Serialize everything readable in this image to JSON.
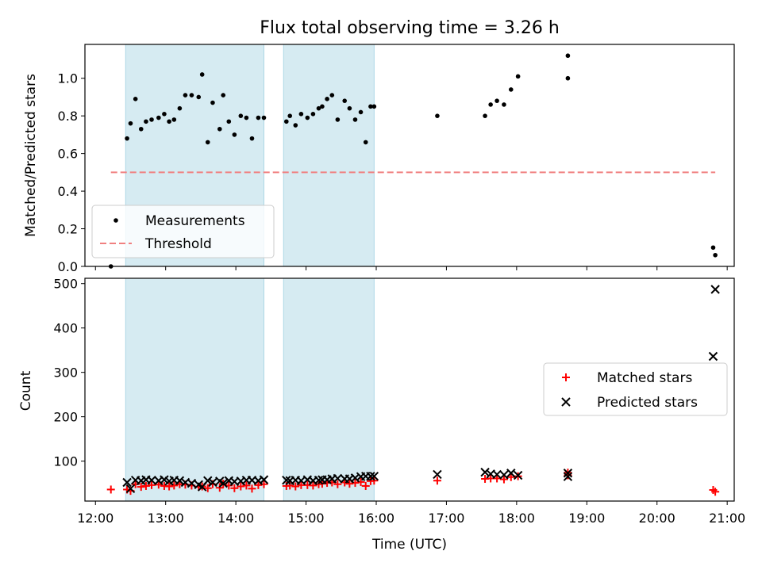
{
  "chart_data": [
    {
      "type": "scatter",
      "title": "Flux total observing time = 3.26 h",
      "xlabel": "",
      "ylabel": "Matched/Predicted stars",
      "xlim": [
        11.85,
        21.1
      ],
      "ylim": [
        0,
        1.18
      ],
      "yticks": [
        0.0,
        0.2,
        0.4,
        0.6,
        0.8,
        1.0
      ],
      "ytick_labels": [
        "0.0",
        "0.2",
        "0.4",
        "0.6",
        "0.8",
        "1.0"
      ],
      "legend_position": "lower-left",
      "shaded_intervals": [
        [
          12.43,
          14.4
        ],
        [
          14.68,
          15.97
        ]
      ],
      "shade_color": "#add8e6",
      "series": [
        {
          "name": "Measurements",
          "marker": "dot",
          "color": "#000000",
          "x": [
            12.22,
            12.45,
            12.5,
            12.57,
            12.65,
            12.72,
            12.8,
            12.9,
            12.98,
            13.05,
            13.12,
            13.2,
            13.28,
            13.37,
            13.47,
            13.52,
            13.6,
            13.67,
            13.77,
            13.82,
            13.9,
            13.98,
            14.07,
            14.15,
            14.23,
            14.32,
            14.4,
            14.72,
            14.77,
            14.85,
            14.93,
            15.02,
            15.1,
            15.18,
            15.23,
            15.3,
            15.37,
            15.45,
            15.55,
            15.62,
            15.7,
            15.78,
            15.85,
            15.92,
            15.97,
            16.87,
            17.55,
            17.63,
            17.72,
            17.82,
            17.92,
            18.02,
            18.73,
            18.73,
            20.8,
            20.83
          ],
          "y": [
            0.0,
            0.68,
            0.76,
            0.89,
            0.73,
            0.77,
            0.78,
            0.79,
            0.81,
            0.77,
            0.78,
            0.84,
            0.91,
            0.91,
            0.9,
            1.02,
            0.66,
            0.87,
            0.73,
            0.91,
            0.77,
            0.7,
            0.8,
            0.79,
            0.68,
            0.79,
            0.79,
            0.77,
            0.8,
            0.75,
            0.81,
            0.79,
            0.81,
            0.84,
            0.85,
            0.89,
            0.91,
            0.78,
            0.88,
            0.84,
            0.78,
            0.82,
            0.66,
            0.85,
            0.85,
            0.8,
            0.8,
            0.86,
            0.88,
            0.86,
            0.94,
            1.01,
            1.0,
            1.12,
            0.1,
            0.06
          ]
        },
        {
          "name": "Threshold",
          "type": "line",
          "dashed": true,
          "color": "#f08080",
          "x": [
            12.22,
            20.83
          ],
          "y": [
            0.5,
            0.5
          ]
        }
      ]
    },
    {
      "type": "scatter",
      "xlabel": "Time (UTC)",
      "ylabel": "Count",
      "xlim": [
        11.85,
        21.1
      ],
      "ylim": [
        10,
        512
      ],
      "yticks": [
        100,
        200,
        300,
        400,
        500
      ],
      "ytick_labels": [
        "100",
        "200",
        "300",
        "400",
        "500"
      ],
      "xticks": [
        12,
        13,
        14,
        15,
        16,
        17,
        18,
        19,
        20,
        21
      ],
      "xtick_labels": [
        "12:00",
        "13:00",
        "14:00",
        "15:00",
        "16:00",
        "17:00",
        "18:00",
        "19:00",
        "20:00",
        "21:00"
      ],
      "legend_position": "center-right",
      "shaded_intervals": [
        [
          12.43,
          14.4
        ],
        [
          14.68,
          15.97
        ]
      ],
      "shade_color": "#add8e6",
      "series": [
        {
          "name": "Matched stars",
          "marker": "plus",
          "color": "#ff0000",
          "x": [
            12.22,
            12.45,
            12.5,
            12.57,
            12.65,
            12.72,
            12.8,
            12.9,
            12.98,
            13.05,
            13.12,
            13.2,
            13.28,
            13.37,
            13.47,
            13.52,
            13.6,
            13.67,
            13.77,
            13.82,
            13.9,
            13.98,
            14.07,
            14.15,
            14.23,
            14.32,
            14.4,
            14.72,
            14.77,
            14.85,
            14.93,
            15.02,
            15.1,
            15.18,
            15.23,
            15.3,
            15.37,
            15.45,
            15.55,
            15.62,
            15.7,
            15.78,
            15.85,
            15.92,
            15.97,
            16.87,
            17.55,
            17.63,
            17.72,
            17.82,
            17.92,
            18.02,
            18.73,
            18.73,
            20.8,
            20.83
          ],
          "y": [
            36,
            36,
            33,
            48,
            42,
            44,
            46,
            47,
            44,
            43,
            45,
            48,
            47,
            45,
            42,
            43,
            39,
            48,
            40,
            49,
            45,
            39,
            43,
            45,
            38,
            46,
            48,
            44,
            45,
            43,
            46,
            46,
            45,
            48,
            49,
            51,
            52,
            48,
            52,
            49,
            51,
            53,
            44,
            55,
            56,
            56,
            60,
            61,
            61,
            59,
            64,
            66,
            68,
            74,
            35,
            31
          ]
        },
        {
          "name": "Predicted stars",
          "marker": "x",
          "color": "#000000",
          "x": [
            12.45,
            12.5,
            12.57,
            12.65,
            12.72,
            12.8,
            12.9,
            12.98,
            13.05,
            13.12,
            13.2,
            13.28,
            13.37,
            13.47,
            13.52,
            13.6,
            13.67,
            13.77,
            13.82,
            13.9,
            13.98,
            14.07,
            14.15,
            14.23,
            14.32,
            14.4,
            14.72,
            14.77,
            14.85,
            14.93,
            15.02,
            15.1,
            15.18,
            15.23,
            15.3,
            15.37,
            15.45,
            15.55,
            15.62,
            15.7,
            15.78,
            15.85,
            15.92,
            15.97,
            16.87,
            17.55,
            17.63,
            17.72,
            17.82,
            17.92,
            18.02,
            18.73,
            18.73,
            20.8,
            20.83
          ],
          "y": [
            52,
            38,
            57,
            56,
            58,
            57,
            56,
            58,
            55,
            57,
            56,
            52,
            50,
            47,
            42,
            56,
            52,
            55,
            50,
            56,
            54,
            55,
            57,
            57,
            56,
            58,
            57,
            56,
            57,
            56,
            58,
            56,
            57,
            58,
            58,
            60,
            61,
            60,
            60,
            62,
            65,
            66,
            66,
            66,
            70,
            75,
            71,
            70,
            69,
            73,
            68,
            73,
            65,
            336,
            487
          ]
        }
      ]
    }
  ]
}
